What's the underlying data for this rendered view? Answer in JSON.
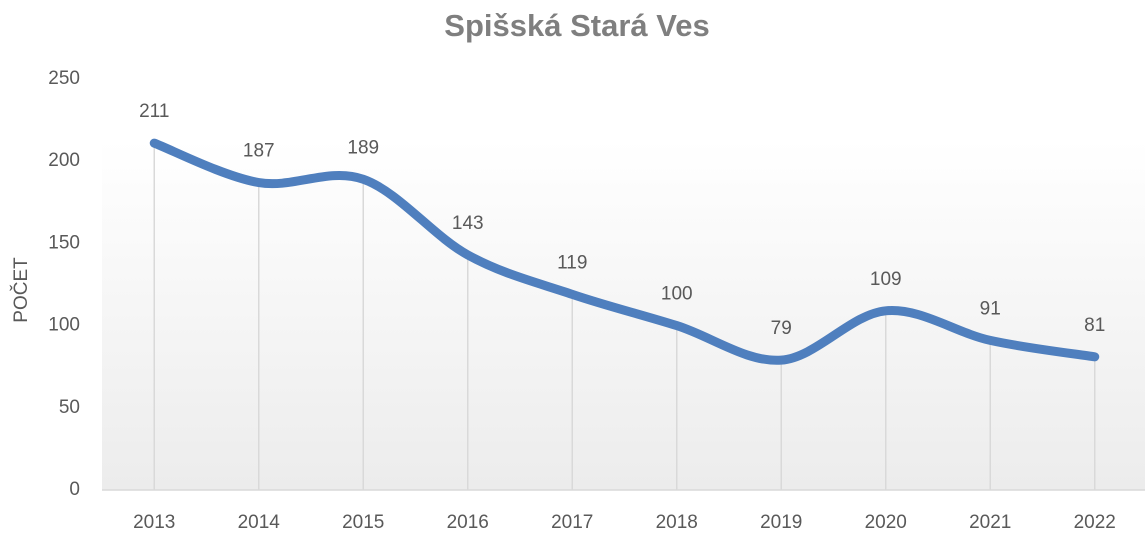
{
  "chart_data": {
    "type": "line",
    "title": "Spišská Stará Ves",
    "ylabel": "POČET",
    "categories": [
      "2013",
      "2014",
      "2015",
      "2016",
      "2017",
      "2018",
      "2019",
      "2020",
      "2021",
      "2022"
    ],
    "values": [
      211,
      187,
      189,
      143,
      119,
      100,
      79,
      109,
      91,
      81
    ],
    "color": "#4f7fbe",
    "smooth": true,
    "drop_lines": true,
    "ylim": [
      0,
      250
    ],
    "yticks": [
      0,
      50,
      100,
      150,
      200,
      250
    ]
  }
}
